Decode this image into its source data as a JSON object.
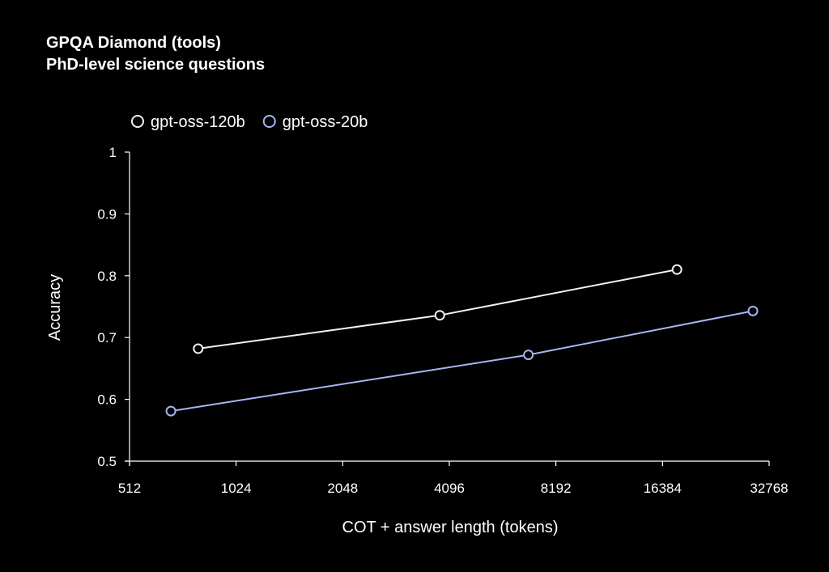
{
  "chart_data": {
    "type": "line",
    "title": "GPQA Diamond (tools)",
    "subtitle": "PhD-level science questions",
    "xlabel": "COT + answer length (tokens)",
    "ylabel": "Accuracy",
    "x_scale": "log2",
    "x_ticks": [
      512,
      1024,
      2048,
      4096,
      8192,
      16384,
      32768
    ],
    "x_tick_labels": [
      "512",
      "1024",
      "2048",
      "4096",
      "8192",
      "16384",
      "32768"
    ],
    "xlim": [
      512,
      32768
    ],
    "y_ticks": [
      0.5,
      0.6,
      0.7,
      0.8,
      0.9,
      1
    ],
    "y_tick_labels": [
      "0.5",
      "0.6",
      "0.7",
      "0.8",
      "0.9",
      "1"
    ],
    "ylim": [
      0.5,
      1
    ],
    "grid": false,
    "legend_position": "top-left",
    "series": [
      {
        "name": "gpt-oss-120b",
        "color": "#f2f2f2",
        "x": [
          800,
          3850,
          18000
        ],
        "y": [
          0.682,
          0.736,
          0.81
        ]
      },
      {
        "name": "gpt-oss-20b",
        "color": "#a9b4f0",
        "x": [
          670,
          6850,
          29500
        ],
        "y": [
          0.581,
          0.672,
          0.743
        ]
      }
    ]
  }
}
